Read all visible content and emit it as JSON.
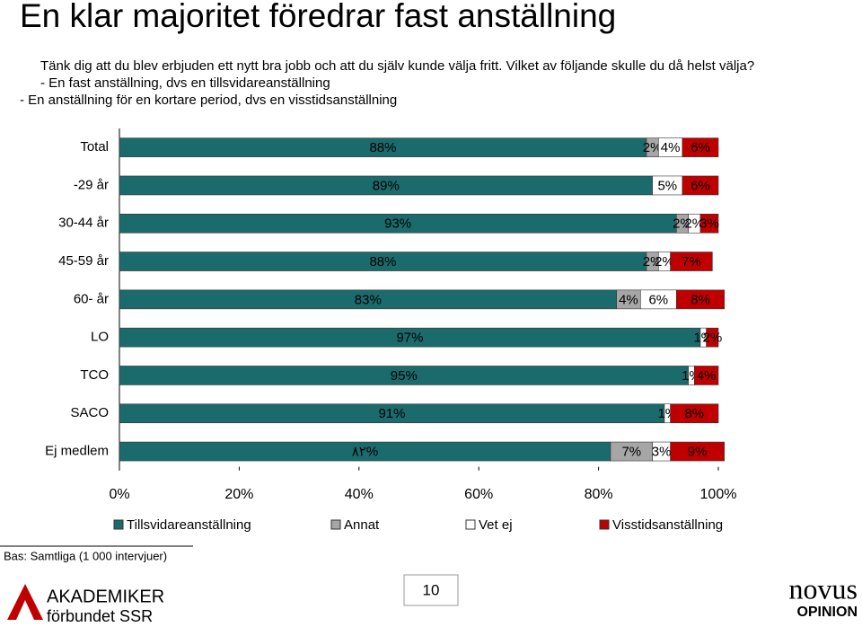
{
  "chart_data": {
    "type": "stacked-bar-horizontal",
    "title": "En klar majoritet föredrar fast anställning",
    "subtitle": [
      "Tänk dig att du blev erbjuden ett nytt bra jobb och att du själv kunde välja fritt. Vilket av följande skulle du då helst välja?",
      "- En fast anställning, dvs en tillsvidareanställning",
      "- En anställning för en kortare period, dvs en visstidsanställning"
    ],
    "categories": [
      "Total",
      "-29 år",
      "30-44 år",
      "45-59 år",
      "60- år",
      "LO",
      "TCO",
      "SACO",
      "Ej medlem"
    ],
    "series": [
      {
        "name": "Tillsvidareanställning",
        "color": "#1b6a6c",
        "values": [
          88,
          89,
          93,
          88,
          83,
          97,
          95,
          91,
          82
        ],
        "value_labels": [
          "88%",
          "89%",
          "93%",
          "88%",
          "83%",
          "97%",
          "95%",
          "91%",
          "٨٢%"
        ]
      },
      {
        "name": "Annat",
        "color": "#a6a6a6",
        "values": [
          2,
          null,
          2,
          2,
          4,
          null,
          null,
          null,
          7
        ],
        "value_labels": [
          "2%",
          null,
          "2%",
          "2%",
          "4%",
          null,
          null,
          null,
          "7%"
        ]
      },
      {
        "name": "Vet ej",
        "color": "#ffffff",
        "values": [
          4,
          5,
          2,
          2,
          6,
          1,
          1,
          1,
          3
        ],
        "value_labels": [
          "4%",
          "5%",
          "2%",
          "2%",
          "6%",
          "1%",
          "1%",
          "1%",
          "3%"
        ]
      },
      {
        "name": "Visstidsanställning",
        "color": "#c00000",
        "values": [
          6,
          6,
          3,
          7,
          8,
          2,
          4,
          8,
          9
        ],
        "value_labels": [
          "6%",
          "6%",
          "3%",
          "7%",
          "8%",
          "2%",
          "4%",
          "8%",
          "9%"
        ]
      }
    ],
    "xlim": [
      0,
      100
    ],
    "xticks": [
      {
        "value": 0,
        "label": "0%"
      },
      {
        "value": 20,
        "label": "20%"
      },
      {
        "value": 40,
        "label": "40%"
      },
      {
        "value": 60,
        "label": "60%"
      },
      {
        "value": 80,
        "label": "80%"
      },
      {
        "value": 100,
        "label": "100%"
      }
    ],
    "legend": "bottom",
    "note": "Bas: Samtliga (1 000 intervjuer)"
  },
  "footer": {
    "page_number": "10",
    "logo_left": [
      "AKADEMIKER",
      "förbundet SSR"
    ],
    "logo_right": [
      "novus",
      "OPINION"
    ]
  }
}
